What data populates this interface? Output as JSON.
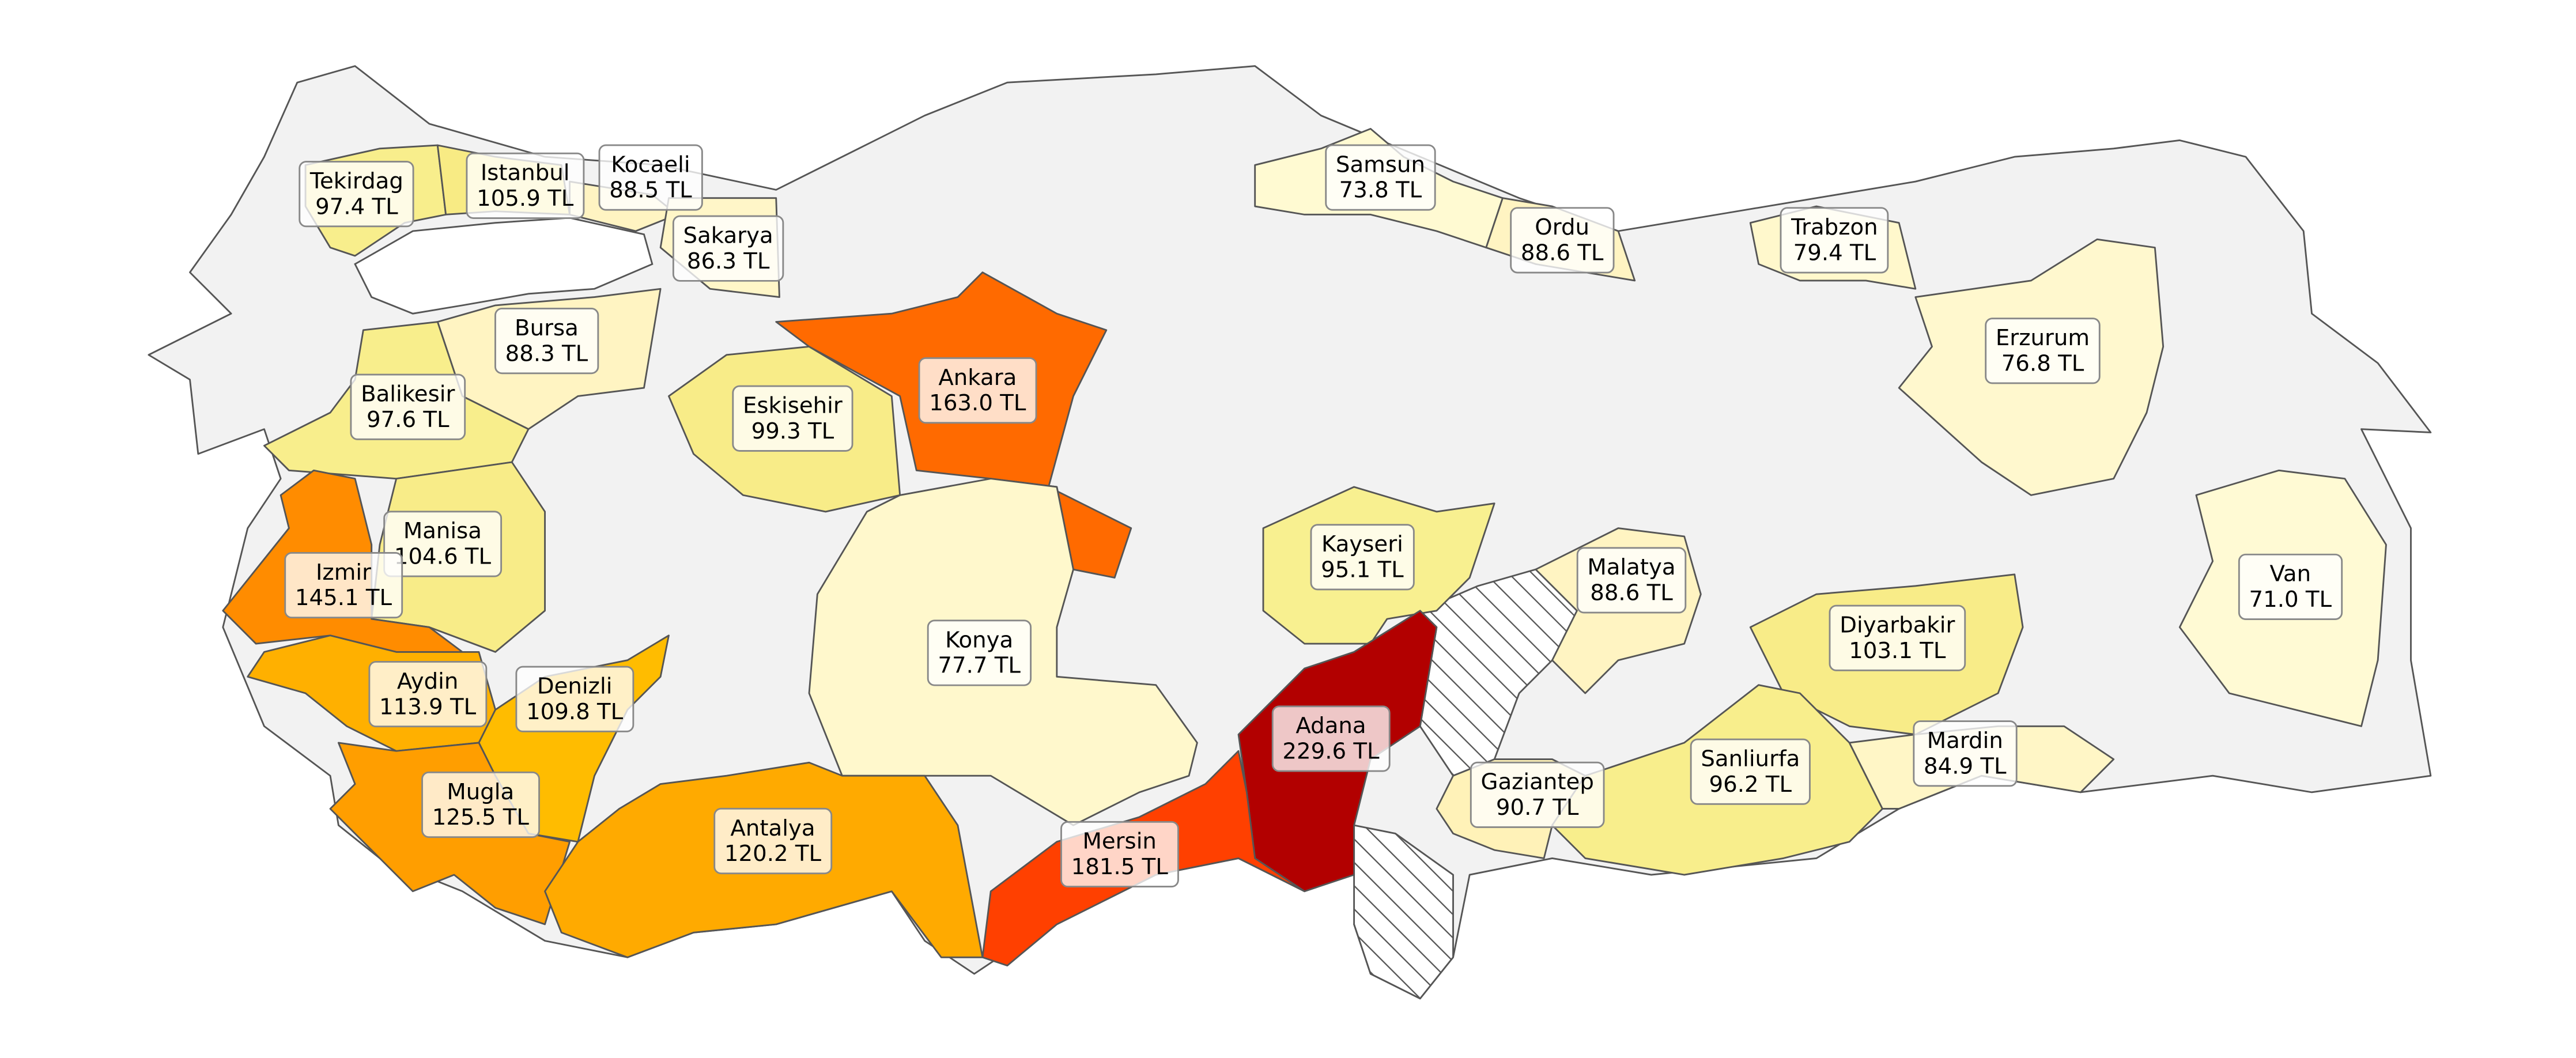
{
  "chart_data": {
    "type": "choropleth",
    "categories": [
      "Tekirdag",
      "Istanbul",
      "Kocaeli",
      "Sakarya",
      "Bursa",
      "Balikesir",
      "Eskisehir",
      "Ankara",
      "Samsun",
      "Ordu",
      "Trabzon",
      "Erzurum",
      "Manisa",
      "Izmir",
      "Kayseri",
      "Malatya",
      "Van",
      "Konya",
      "Diyarbakir",
      "Aydin",
      "Denizli",
      "Adana",
      "Gaziantep",
      "Sanliurfa",
      "Mardin",
      "Mugla",
      "Antalya",
      "Mersin"
    ],
    "values": [
      97.4,
      105.9,
      88.5,
      86.3,
      88.3,
      97.6,
      99.3,
      163.0,
      73.8,
      88.6,
      79.4,
      76.8,
      104.6,
      145.1,
      95.1,
      88.6,
      71.0,
      77.7,
      103.1,
      113.9,
      109.8,
      229.6,
      90.7,
      96.2,
      84.9,
      125.5,
      120.2,
      181.5
    ],
    "value_labels": [
      "97.4 TL",
      "105.9 TL",
      "88.5 TL",
      "86.3 TL",
      "88.3 TL",
      "97.6 TL",
      "99.3 TL",
      "163.0 TL",
      "73.8 TL",
      "88.6 TL",
      "79.4 TL",
      "76.8 TL",
      "104.6 TL",
      "145.1 TL",
      "95.1 TL",
      "88.6 TL",
      "71.0 TL",
      "77.7 TL",
      "103.1 TL",
      "113.9 TL",
      "109.8 TL",
      "229.6 TL",
      "90.7 TL",
      "96.2 TL",
      "84.9 TL",
      "125.5 TL",
      "120.2 TL",
      "181.5 TL"
    ],
    "colors": [
      "#f8ee8c",
      "#f8eb84",
      "#fff4c2",
      "#fff6c8",
      "#fff4c2",
      "#f8ee8c",
      "#f8ec88",
      "#ff6a00",
      "#fffad2",
      "#fff4c2",
      "#fff8cc",
      "#fff8ce",
      "#f8ec88",
      "#ff8c00",
      "#f8f090",
      "#fff4c2",
      "#fffad4",
      "#fff8cc",
      "#f8ec88",
      "#ffb000",
      "#ffbc00",
      "#b20000",
      "#fff2b8",
      "#f8ee8c",
      "#fff6c6",
      "#ff9e00",
      "#ffaa00",
      "#ff4000"
    ]
  }
}
